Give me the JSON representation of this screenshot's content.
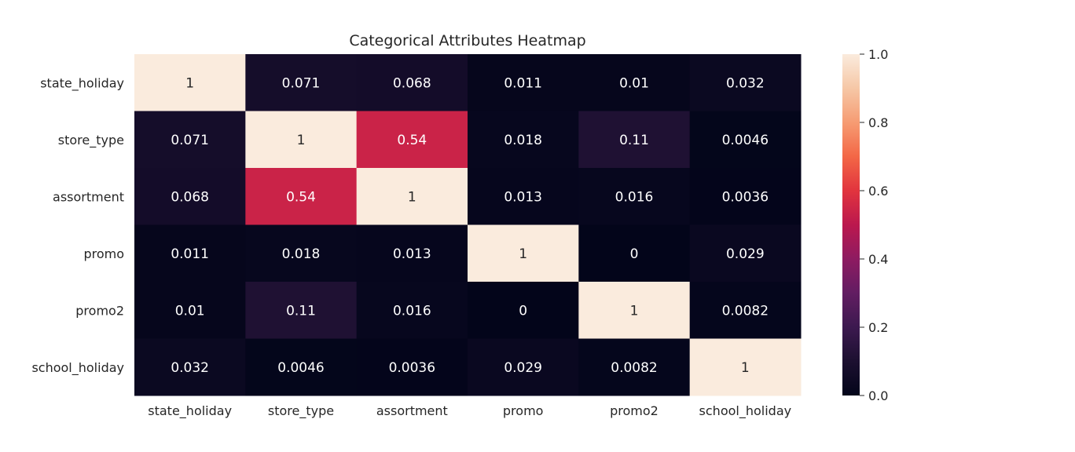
{
  "chart_data": {
    "type": "heatmap",
    "title": "Categorical Attributes Heatmap",
    "x_labels": [
      "state_holiday",
      "store_type",
      "assortment",
      "promo",
      "promo2",
      "school_holiday"
    ],
    "y_labels": [
      "state_holiday",
      "store_type",
      "assortment",
      "promo",
      "promo2",
      "school_holiday"
    ],
    "values": [
      [
        1,
        0.071,
        0.068,
        0.011,
        0.01,
        0.032
      ],
      [
        0.071,
        1,
        0.54,
        0.018,
        0.11,
        0.0046
      ],
      [
        0.068,
        0.54,
        1,
        0.013,
        0.016,
        0.0036
      ],
      [
        0.011,
        0.018,
        0.013,
        1,
        0,
        0.029
      ],
      [
        0.01,
        0.11,
        0.016,
        0,
        1,
        0.0082
      ],
      [
        0.032,
        0.0046,
        0.0036,
        0.029,
        0.0082,
        1
      ]
    ],
    "value_labels": [
      [
        "1",
        "0.071",
        "0.068",
        "0.011",
        "0.01",
        "0.032"
      ],
      [
        "0.071",
        "1",
        "0.54",
        "0.018",
        "0.11",
        "0.0046"
      ],
      [
        "0.068",
        "0.54",
        "1",
        "0.013",
        "0.016",
        "0.0036"
      ],
      [
        "0.011",
        "0.018",
        "0.013",
        "1",
        "0",
        "0.029"
      ],
      [
        "0.01",
        "0.11",
        "0.016",
        "0",
        "1",
        "0.0082"
      ],
      [
        "0.032",
        "0.0046",
        "0.0036",
        "0.029",
        "0.0082",
        "1"
      ]
    ],
    "colorbar": {
      "min": 0,
      "max": 1,
      "ticks": [
        0,
        0.2,
        0.4,
        0.6,
        0.8,
        1
      ],
      "tick_labels": [
        "0.0",
        "0.2",
        "0.4",
        "0.6",
        "0.8",
        "1.0"
      ],
      "colormap": "rocket"
    }
  }
}
